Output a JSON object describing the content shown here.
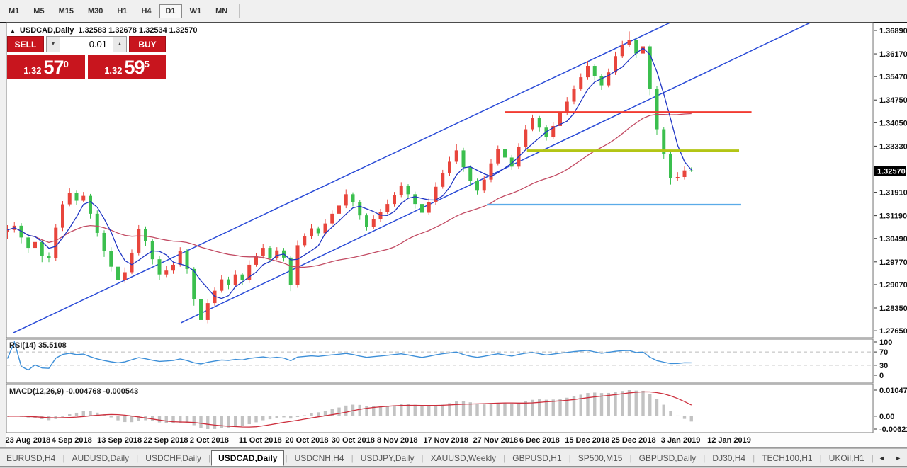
{
  "toolbar": {
    "timeframes": [
      "M1",
      "M5",
      "M15",
      "M30",
      "H1",
      "H4",
      "D1",
      "W1",
      "MN"
    ],
    "active_timeframe": "D1"
  },
  "header": {
    "collapse_icon": "▲",
    "symbol": "USDCAD,Daily",
    "ohlc": "1.32583 1.32678 1.32534 1.32570"
  },
  "trade_panel": {
    "sell_label": "SELL",
    "buy_label": "BUY",
    "volume": "0.01",
    "spin_down_icon": "▼",
    "spin_up_icon": "▲",
    "sell_price": {
      "small": "1.32",
      "big": "57",
      "sup": "0"
    },
    "buy_price": {
      "small": "1.32",
      "big": "59",
      "sup": "5"
    }
  },
  "indicator_labels": {
    "rsi": "RSI(14) 35.5108",
    "macd": "MACD(12,26,9) -0.004768 -0.000543"
  },
  "tabs": {
    "items": [
      "EURUSD,H4",
      "AUDUSD,Daily",
      "USDCHF,Daily",
      "USDCAD,Daily",
      "USDCNH,H4",
      "USDJPY,Daily",
      "XAUUSD,Weekly",
      "GBPUSD,H1",
      "SP500,M15",
      "GBPUSD,Daily",
      "DJ30,H4",
      "TECH100,H1",
      "UKOil,H1"
    ],
    "active_index": 3,
    "nav_icons": "◄ ►"
  },
  "chart_data": {
    "type": "candlestick",
    "symbol": "USDCAD",
    "timeframe": "Daily",
    "open_first": 1.3068,
    "bars": [
      [
        1.3075,
        0.0015,
        0.002
      ],
      [
        1.3088,
        0.0012,
        0.0008
      ],
      [
        1.3052,
        0.0008,
        0.0018
      ],
      [
        1.302,
        0.001,
        0.0015
      ],
      [
        1.3038,
        0.0014,
        0.0006
      ],
      [
        1.2996,
        0.0006,
        0.002
      ],
      [
        1.2988,
        0.001,
        0.0012
      ],
      [
        1.3082,
        0.0012,
        0.0008
      ],
      [
        1.3154,
        0.001,
        0.001
      ],
      [
        1.3188,
        0.0015,
        0.0006
      ],
      [
        1.3165,
        0.0008,
        0.0012
      ],
      [
        1.318,
        0.0012,
        0.0005
      ],
      [
        1.3125,
        0.0006,
        0.0015
      ],
      [
        1.3066,
        0.001,
        0.0012
      ],
      [
        1.301,
        0.0008,
        0.0018
      ],
      [
        1.2962,
        0.0012,
        0.0015
      ],
      [
        1.292,
        0.0006,
        0.0022
      ],
      [
        1.2945,
        0.0015,
        0.0008
      ],
      [
        1.3005,
        0.001,
        0.0006
      ],
      [
        1.3078,
        0.0012,
        0.0008
      ],
      [
        1.304,
        0.0008,
        0.0014
      ],
      [
        1.2985,
        0.0006,
        0.0016
      ],
      [
        1.2938,
        0.001,
        0.0018
      ],
      [
        1.295,
        0.0014,
        0.0008
      ],
      [
        1.2968,
        0.001,
        0.001
      ],
      [
        1.301,
        0.0012,
        0.0006
      ],
      [
        1.2955,
        0.0008,
        0.0015
      ],
      [
        1.2862,
        0.0006,
        0.002
      ],
      [
        1.2798,
        0.0008,
        0.0016
      ],
      [
        1.285,
        0.0012,
        0.001
      ],
      [
        1.2888,
        0.001,
        0.0008
      ],
      [
        1.2923,
        0.0014,
        0.0006
      ],
      [
        1.2905,
        0.0008,
        0.0012
      ],
      [
        1.2938,
        0.0012,
        0.0006
      ],
      [
        1.292,
        0.0006,
        0.0014
      ],
      [
        1.2968,
        0.0014,
        0.0008
      ],
      [
        1.2995,
        0.001,
        0.0006
      ],
      [
        1.302,
        0.0012,
        0.0008
      ],
      [
        1.2988,
        0.0006,
        0.0012
      ],
      [
        1.3012,
        0.001,
        0.0006
      ],
      [
        1.299,
        0.0008,
        0.0012
      ],
      [
        1.2905,
        0.0005,
        0.0018
      ],
      [
        1.3028,
        0.0015,
        0.0008
      ],
      [
        1.3055,
        0.001,
        0.0006
      ],
      [
        1.308,
        0.0012,
        0.0008
      ],
      [
        1.3065,
        0.0006,
        0.001
      ],
      [
        1.3095,
        0.0014,
        0.0006
      ],
      [
        1.3125,
        0.001,
        0.0008
      ],
      [
        1.315,
        0.0012,
        0.0006
      ],
      [
        1.3185,
        0.0015,
        0.0008
      ],
      [
        1.316,
        0.0006,
        0.0012
      ],
      [
        1.312,
        0.0008,
        0.0014
      ],
      [
        1.3085,
        0.0006,
        0.0012
      ],
      [
        1.3108,
        0.0012,
        0.0006
      ],
      [
        1.313,
        0.001,
        0.0008
      ],
      [
        1.3155,
        0.0014,
        0.0006
      ],
      [
        1.3182,
        0.001,
        0.0008
      ],
      [
        1.321,
        0.0012,
        0.0006
      ],
      [
        1.3185,
        0.0006,
        0.0012
      ],
      [
        1.3155,
        0.0008,
        0.0014
      ],
      [
        1.3128,
        0.0006,
        0.0012
      ],
      [
        1.316,
        0.0012,
        0.0006
      ],
      [
        1.3208,
        0.0014,
        0.0008
      ],
      [
        1.325,
        0.001,
        0.0006
      ],
      [
        1.3285,
        0.0015,
        0.0008
      ],
      [
        1.332,
        0.002,
        0.0006
      ],
      [
        1.3268,
        0.0008,
        0.0014
      ],
      [
        1.3225,
        0.0006,
        0.0015
      ],
      [
        1.3196,
        0.0008,
        0.0012
      ],
      [
        1.323,
        0.0012,
        0.0006
      ],
      [
        1.328,
        0.0014,
        0.0008
      ],
      [
        1.3325,
        0.001,
        0.0006
      ],
      [
        1.3298,
        0.0006,
        0.0012
      ],
      [
        1.327,
        0.0008,
        0.001
      ],
      [
        1.333,
        0.0012,
        0.0006
      ],
      [
        1.3385,
        0.0014,
        0.0008
      ],
      [
        1.342,
        0.001,
        0.0006
      ],
      [
        1.339,
        0.0006,
        0.0012
      ],
      [
        1.336,
        0.0008,
        0.001
      ],
      [
        1.3395,
        0.0012,
        0.0006
      ],
      [
        1.3435,
        0.001,
        0.0008
      ],
      [
        1.347,
        0.0014,
        0.0006
      ],
      [
        1.351,
        0.001,
        0.0008
      ],
      [
        1.3545,
        0.0012,
        0.0006
      ],
      [
        1.358,
        0.0015,
        0.0008
      ],
      [
        1.3548,
        0.0006,
        0.0012
      ],
      [
        1.352,
        0.0008,
        0.0014
      ],
      [
        1.356,
        0.0012,
        0.0006
      ],
      [
        1.361,
        0.0014,
        0.0008
      ],
      [
        1.3645,
        0.0012,
        0.0006
      ],
      [
        1.366,
        0.0026,
        0.0008
      ],
      [
        1.3618,
        0.0008,
        0.0014
      ],
      [
        1.364,
        0.0015,
        0.0006
      ],
      [
        1.351,
        0.0006,
        0.002
      ],
      [
        1.3385,
        0.0008,
        0.0018
      ],
      [
        1.331,
        0.0006,
        0.0016
      ],
      [
        1.3235,
        0.0008,
        0.002
      ],
      [
        1.3238,
        0.0015,
        0.001
      ],
      [
        1.32583,
        0.0012,
        0.0008
      ],
      [
        1.3257,
        0.00095,
        0.00036
      ]
    ],
    "price_ticks": [
      1.3689,
      1.3617,
      1.3547,
      1.3475,
      1.3405,
      1.3333,
      1.3263,
      1.3191,
      1.3119,
      1.3049,
      1.2977,
      1.2907,
      1.2835,
      1.2765
    ],
    "current_price": 1.3257,
    "current_price_label": "1.32570",
    "date_ticks": [
      {
        "label": "23 Aug 2018",
        "bar": 0
      },
      {
        "label": "4 Sep 2018",
        "bar": 6.7
      },
      {
        "label": "13 Sep 2018",
        "bar": 13.3
      },
      {
        "label": "22 Sep 2018",
        "bar": 20
      },
      {
        "label": "2 Oct 2018",
        "bar": 26.7
      },
      {
        "label": "11 Oct 2018",
        "bar": 33.8
      },
      {
        "label": "20 Oct 2018",
        "bar": 40.5
      },
      {
        "label": "30 Oct 2018",
        "bar": 47.2
      },
      {
        "label": "8 Nov 2018",
        "bar": 53.8
      },
      {
        "label": "17 Nov 2018",
        "bar": 60.5
      },
      {
        "label": "27 Nov 2018",
        "bar": 67.7
      },
      {
        "label": "6 Dec 2018",
        "bar": 74.4
      },
      {
        "label": "15 Dec 2018",
        "bar": 81
      },
      {
        "label": "25 Dec 2018",
        "bar": 87.7
      },
      {
        "label": "3 Jan 2019",
        "bar": 94.9
      },
      {
        "label": "12 Jan 2019",
        "bar": 101.6
      }
    ],
    "moving_averages": {
      "fast_period": 5,
      "slow_period": 30
    },
    "trend_lines": [
      {
        "from_bar": 0.8,
        "from_price": 1.2758,
        "to_bar": 97.4,
        "to_price": 1.3728
      },
      {
        "from_bar": 25.1,
        "from_price": 1.2789,
        "to_bar": 116.2,
        "to_price": 1.3713
      }
    ],
    "h_lines": [
      {
        "price": 1.3438,
        "from_bar": 72.0,
        "to_bar": 107.7,
        "color": "#f23c32",
        "width": 2.2
      },
      {
        "price": 1.3319,
        "from_bar": 75.2,
        "to_bar": 105.9,
        "color": "#b3c515",
        "width": 3.5
      },
      {
        "price": 1.3153,
        "from_bar": 69.4,
        "to_bar": 106.2,
        "color": "#5aabe8",
        "width": 2.2
      }
    ],
    "rsi": {
      "period": 14,
      "levels": [
        70,
        30
      ],
      "scale_labels": [
        {
          "v": 100,
          "t": "100"
        },
        {
          "v": 70,
          "t": "70"
        },
        {
          "v": 30,
          "t": "30"
        },
        {
          "v": 0,
          "t": "0"
        }
      ],
      "current": "35.5108"
    },
    "macd": {
      "fast": 12,
      "slow": 26,
      "signal": 9,
      "scale_top": "0.010474",
      "scale_zero": "0.00",
      "scale_bottom": "-0.006218"
    },
    "colors": {
      "bull": "#e8453c",
      "bear": "#3bbf4e",
      "ma_fast": "#1f35c4",
      "ma_slow": "#c24b63",
      "trendline": "#2a4bd7",
      "rsi_line": "#3d8fd8",
      "rsi_level": "#bbbbbb",
      "macd_hist": "#c2c2c2",
      "macd_signal": "#cc2e3c",
      "badge_bg": "#000000",
      "badge_fg": "#ffffff",
      "pane_border": "#7a7a7a",
      "axis_text": "#111111"
    }
  }
}
